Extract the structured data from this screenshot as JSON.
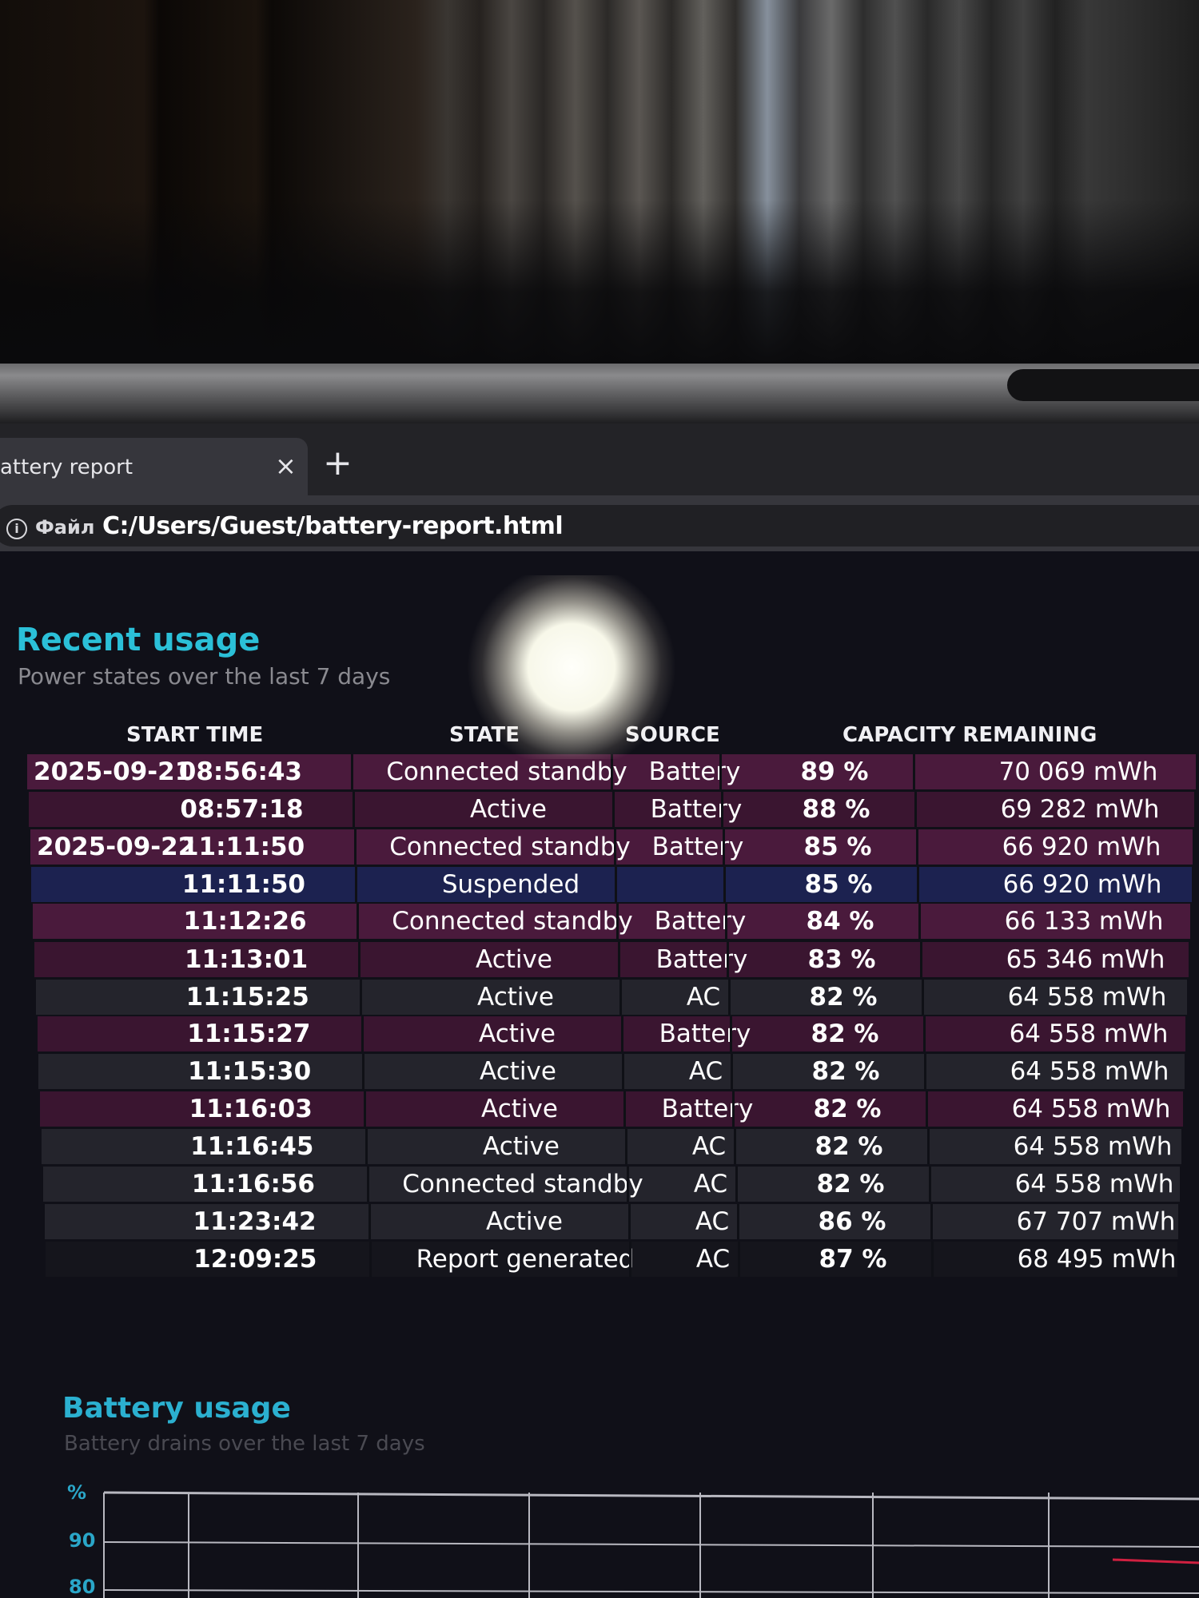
{
  "browser": {
    "tab_title": "attery report",
    "tab_close": "×",
    "new_tab": "+",
    "scheme_label": "Файл",
    "url": "C:/Users/Guest/battery-report.html"
  },
  "recent_usage": {
    "title": "Recent usage",
    "subtitle": "Power states over the last 7 days",
    "columns": [
      "START TIME",
      "STATE",
      "SOURCE",
      "CAPACITY REMAINING"
    ],
    "rows": [
      {
        "date": "2025-09-21",
        "time": "08:56:43",
        "state": "Connected standby",
        "source": "Battery",
        "percent": "89 %",
        "mwh": "70 069 mWh"
      },
      {
        "date": "",
        "time": "08:57:18",
        "state": "Active",
        "source": "Battery",
        "percent": "88 %",
        "mwh": "69 282 mWh"
      },
      {
        "date": "2025-09-22",
        "time": "11:11:50",
        "state": "Connected standby",
        "source": "Battery",
        "percent": "85 %",
        "mwh": "66 920 mWh"
      },
      {
        "date": "",
        "time": "11:11:50",
        "state": "Suspended",
        "source": "",
        "percent": "85 %",
        "mwh": "66 920 mWh"
      },
      {
        "date": "",
        "time": "11:12:26",
        "state": "Connected standby",
        "source": "Battery",
        "percent": "84 %",
        "mwh": "66 133 mWh"
      },
      {
        "date": "",
        "time": "11:13:01",
        "state": "Active",
        "source": "Battery",
        "percent": "83 %",
        "mwh": "65 346 mWh"
      },
      {
        "date": "",
        "time": "11:15:25",
        "state": "Active",
        "source": "AC",
        "percent": "82 %",
        "mwh": "64 558 mWh"
      },
      {
        "date": "",
        "time": "11:15:27",
        "state": "Active",
        "source": "Battery",
        "percent": "82 %",
        "mwh": "64 558 mWh"
      },
      {
        "date": "",
        "time": "11:15:30",
        "state": "Active",
        "source": "AC",
        "percent": "82 %",
        "mwh": "64 558 mWh"
      },
      {
        "date": "",
        "time": "11:16:03",
        "state": "Active",
        "source": "Battery",
        "percent": "82 %",
        "mwh": "64 558 mWh"
      },
      {
        "date": "",
        "time": "11:16:45",
        "state": "Active",
        "source": "AC",
        "percent": "82 %",
        "mwh": "64 558 mWh"
      },
      {
        "date": "",
        "time": "11:16:56",
        "state": "Connected standby",
        "source": "AC",
        "percent": "82 %",
        "mwh": "64 558 mWh"
      },
      {
        "date": "",
        "time": "11:23:42",
        "state": "Active",
        "source": "AC",
        "percent": "86 %",
        "mwh": "67 707 mWh"
      },
      {
        "date": "",
        "time": "12:09:25",
        "state": "Report generated",
        "source": "AC",
        "percent": "87 %",
        "mwh": "68 495 mWh"
      }
    ]
  },
  "battery_usage": {
    "title": "Battery usage",
    "subtitle": "Battery drains over the last 7 days",
    "y_unit": "%",
    "y_ticks": [
      "90",
      "80"
    ]
  },
  "colors": {
    "battery_row": "#4a1a3c",
    "battery_row_dark": "#3a1530",
    "suspended_row": "#1c2250",
    "ac_row": "#24242c",
    "heading": "#2bc0d8",
    "chart_grid": "#b8b8c0",
    "chart_line": "#d02040"
  }
}
